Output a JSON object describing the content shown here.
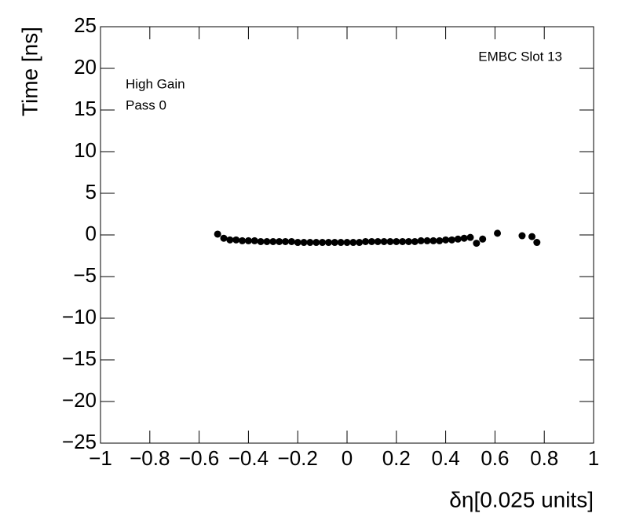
{
  "chart_data": {
    "type": "scatter",
    "x_label": "δη[0.025 units]",
    "y_label": "Time [ns]",
    "annotations": [
      "EMBC Slot 13",
      "High Gain",
      "Pass 0"
    ],
    "series": [
      {
        "color": "#000000",
        "x": [
          -0.525,
          -0.5,
          -0.475,
          -0.45,
          -0.425,
          -0.4,
          -0.375,
          -0.35,
          -0.325,
          -0.3,
          -0.275,
          -0.25,
          -0.225,
          -0.2,
          -0.175,
          -0.15,
          -0.125,
          -0.1,
          -0.075,
          -0.05,
          -0.025,
          0,
          0.025,
          0.05,
          0.075,
          0.1,
          0.125,
          0.15,
          0.175,
          0.2,
          0.225,
          0.25,
          0.275,
          0.3,
          0.325,
          0.35,
          0.375,
          0.4,
          0.425,
          0.45,
          0.475,
          0.5,
          0.525,
          0.55,
          0.61,
          0.71,
          0.75,
          0.77
        ],
        "values": [
          0.1,
          -0.4,
          -0.6,
          -0.6,
          -0.7,
          -0.7,
          -0.7,
          -0.8,
          -0.8,
          -0.8,
          -0.8,
          -0.8,
          -0.8,
          -0.9,
          -0.9,
          -0.9,
          -0.9,
          -0.9,
          -0.9,
          -0.9,
          -0.9,
          -0.9,
          -0.9,
          -0.9,
          -0.8,
          -0.8,
          -0.8,
          -0.8,
          -0.8,
          -0.8,
          -0.8,
          -0.8,
          -0.8,
          -0.7,
          -0.7,
          -0.7,
          -0.7,
          -0.6,
          -0.6,
          -0.5,
          -0.4,
          -0.3,
          -1.0,
          -0.5,
          0.2,
          -0.1,
          -0.2,
          -0.9
        ]
      }
    ],
    "xlim": [
      -1,
      1
    ],
    "xticks": [
      {
        "value": -1,
        "label": "−1"
      },
      {
        "value": -0.8,
        "label": "−0.8"
      },
      {
        "value": -0.6,
        "label": "−0.6"
      },
      {
        "value": -0.4,
        "label": "−0.4"
      },
      {
        "value": -0.2,
        "label": "−0.2"
      },
      0,
      0.2,
      0.4,
      0.6,
      0.8,
      1
    ],
    "ylim": [
      -25,
      25
    ],
    "yticks": [
      {
        "value": -25,
        "label": "−25"
      },
      {
        "value": -20,
        "label": "−20"
      },
      {
        "value": -15,
        "label": "−15"
      },
      {
        "value": -10,
        "label": "−10"
      },
      {
        "value": -5,
        "label": "−5"
      },
      0,
      5,
      10,
      15,
      20,
      25
    ]
  }
}
